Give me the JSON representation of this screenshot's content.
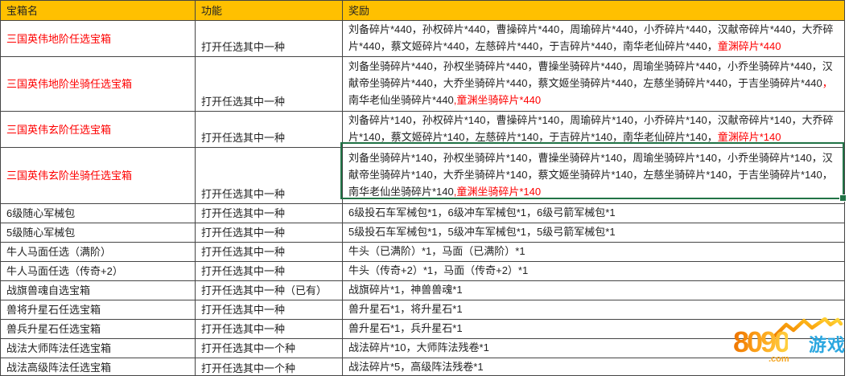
{
  "header": {
    "columns": [
      "宝箱名",
      "功能",
      "奖励"
    ]
  },
  "colors": {
    "header_bg": "#FFC000",
    "red_text": "#FE0000",
    "selection_green": "#217346",
    "watermark_orange": "#F79B1D",
    "watermark_blue": "#2BA7E0"
  },
  "selection": {
    "selected_row_index": 3,
    "selected_column": "奖励"
  },
  "rows": [
    {
      "name": "三国英伟地阶任选宝箱",
      "name_red": true,
      "func": "打开任选其中一种",
      "reward_segments": [
        {
          "text": "刘备碎片*440，孙权碎片*440，曹操碎片*440，周瑜碎片*440，小乔碎片*440，汉献帝碎片*440，大乔碎片*440，蔡文姬碎片*440，左慈碎片*440，于吉碎片*440，南华老仙碎片*440，",
          "red": false
        },
        {
          "text": "童渊碎片*440",
          "red": true
        }
      ]
    },
    {
      "name": "三国英伟地阶坐骑任选宝箱",
      "name_red": true,
      "func": "打开任选其中一种",
      "reward_segments": [
        {
          "text": "刘备坐骑碎片*440，孙权坐骑碎片*440，曹操坐骑碎片*440，周瑜坐骑碎片*440，小乔坐骑碎片*440，汉献帝坐骑碎片*440，大乔坐骑碎片*440，蔡文姬坐骑碎片*440，左慈坐骑碎片*440，于吉坐骑碎片*440",
          "red": false
        },
        {
          "text": "，",
          "red": true
        },
        {
          "text": "南华老仙坐骑碎片*440",
          "red": false
        },
        {
          "text": ",童渊坐骑碎片*440",
          "red": true
        }
      ]
    },
    {
      "name": "三国英伟玄阶任选宝箱",
      "name_red": true,
      "func": "打开任选其中一种",
      "reward_segments": [
        {
          "text": "刘备碎片*140，孙权碎片*140，曹操碎片*140，周瑜碎片*140，小乔碎片*140，汉献帝碎片*140，大乔碎片*140，蔡文姬碎片*140，左慈碎片*140，于吉碎片*140，南华老仙碎片*140，",
          "red": false
        },
        {
          "text": "童渊碎片*140",
          "red": true
        }
      ]
    },
    {
      "name": "三国英伟玄阶坐骑任选宝箱",
      "name_red": true,
      "func": "打开任选其中一种",
      "reward_segments": [
        {
          "text": "刘备坐骑碎片*140，孙权坐骑碎片*140，曹操坐骑碎片*140，周瑜坐骑碎片*140，小乔坐骑碎片*140，汉献帝坐骑碎片*140，大乔坐骑碎片*140，蔡文姬坐骑碎片*140，左慈坐骑碎片*140，于吉坐骑碎片*140，南华老仙坐骑碎片*140",
          "red": false
        },
        {
          "text": ",童渊坐骑碎片*140",
          "red": true
        }
      ]
    },
    {
      "name": "6级随心军械包",
      "name_red": false,
      "func": "打开任选其中一种",
      "reward_segments": [
        {
          "text": "6级投石车军械包*1，6级冲车军械包*1，6级弓箭军械包*1",
          "red": false
        }
      ]
    },
    {
      "name": "5级随心军械包",
      "name_red": false,
      "func": "打开任选其中一种",
      "reward_segments": [
        {
          "text": "5级投石车军械包*1，5级冲车军械包*1，5级弓箭军械包*1",
          "red": false
        }
      ]
    },
    {
      "name": "牛人马面任选（满阶）",
      "name_red": false,
      "func": "打开任选其中一种",
      "reward_segments": [
        {
          "text": "牛头（已满阶）*1，马面（已满阶）*1",
          "red": false
        }
      ]
    },
    {
      "name": "牛人马面任选（传奇+2）",
      "name_red": false,
      "func": "打开任选其中一种",
      "reward_segments": [
        {
          "text": "牛头（传奇+2）*1，马面（传奇+2）*1",
          "red": false
        }
      ]
    },
    {
      "name": "战旗兽魂自选宝箱",
      "name_red": false,
      "func": "打开任选其中一种（已有）",
      "reward_segments": [
        {
          "text": "战旗碎片*1，神兽兽魂*1",
          "red": false
        }
      ]
    },
    {
      "name": "兽将升星石任选宝箱",
      "name_red": false,
      "func": "打开任选其中一种",
      "reward_segments": [
        {
          "text": "兽升星石*1，将升星石*1",
          "red": false
        }
      ]
    },
    {
      "name": "兽兵升星石任选宝箱",
      "name_red": false,
      "func": "打开任选其中一种",
      "reward_segments": [
        {
          "text": "兽升星石*1，兵升星石*1",
          "red": false
        }
      ]
    },
    {
      "name": "战法大师阵法任选宝箱",
      "name_red": false,
      "func": "打开任选其中一个种",
      "reward_segments": [
        {
          "text": "战法碎片*10，大师阵法残卷*1",
          "red": false
        }
      ]
    },
    {
      "name": "战法高级阵法任选宝箱",
      "name_red": false,
      "func": "打开任选其中一个种",
      "reward_segments": [
        {
          "text": "战法碎片*5，高级阵法残卷*1",
          "red": false
        }
      ]
    }
  ],
  "watermark": {
    "number": "8090",
    "domain": ".com",
    "text": "游戏"
  }
}
